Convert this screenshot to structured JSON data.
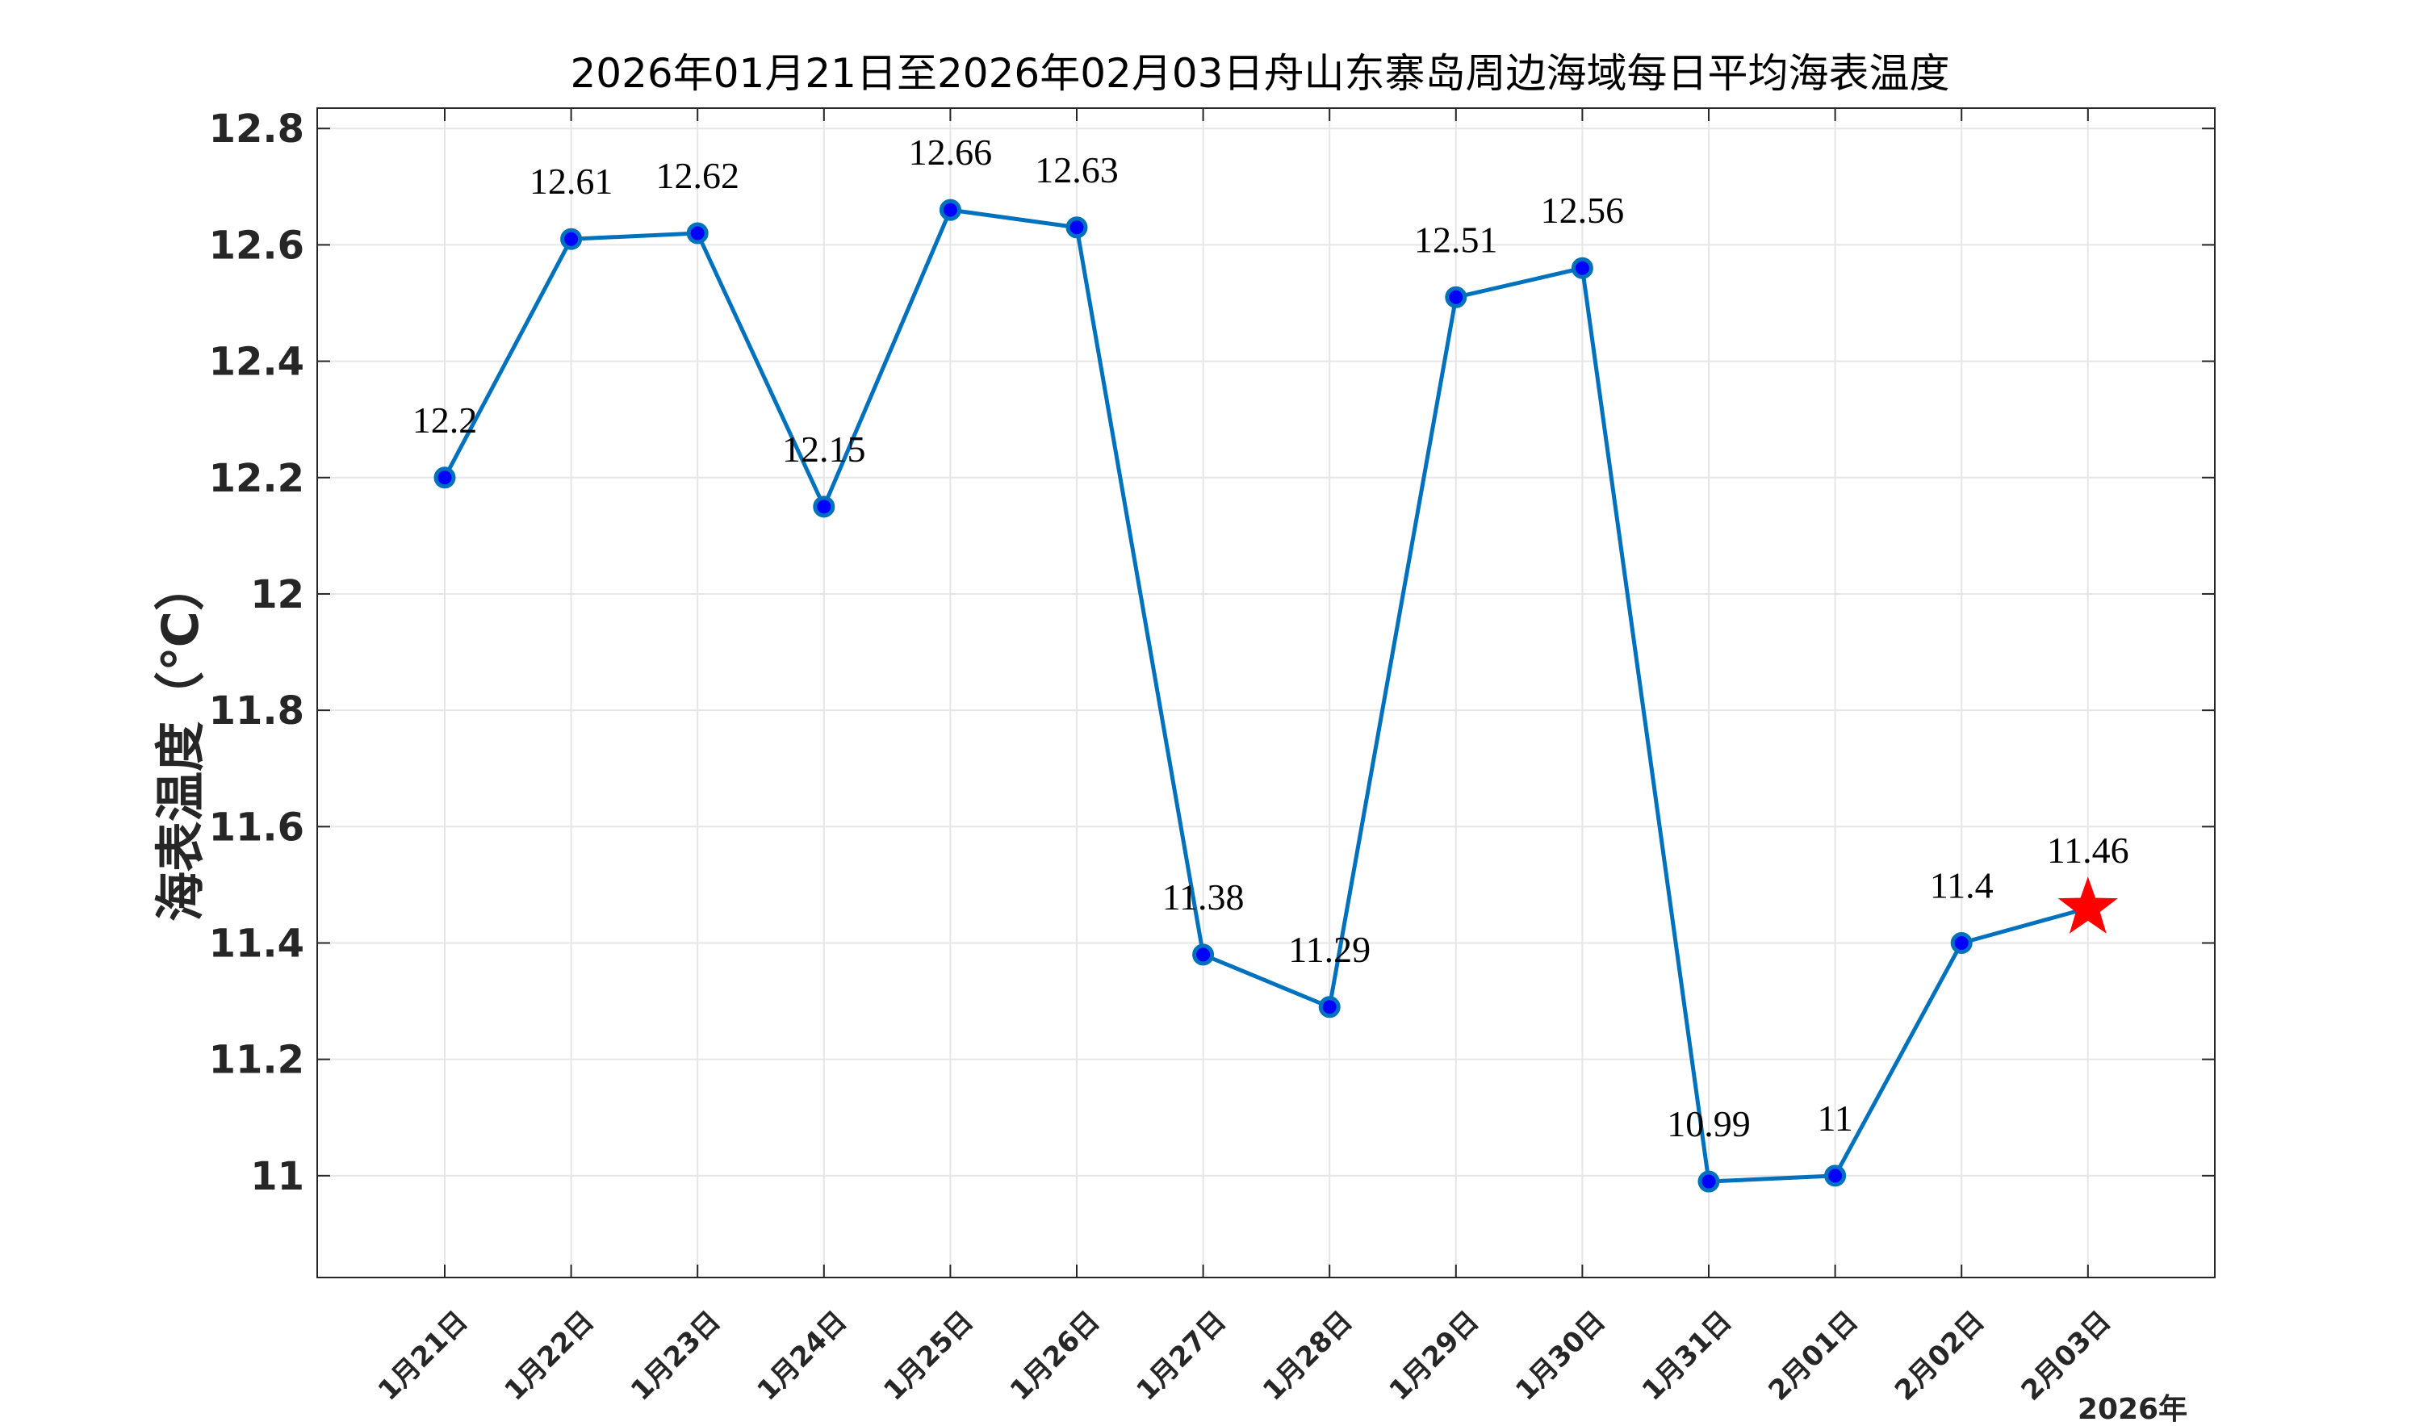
{
  "chart_data": {
    "type": "line",
    "title": "2026年01月21日至2026年02月03日舟山东寨岛周边海域每日平均海表温度",
    "ylabel": "海表温度（℃）",
    "xlabel": "",
    "x_group_label": "2026年",
    "categories": [
      "1月21日",
      "1月22日",
      "1月23日",
      "1月24日",
      "1月25日",
      "1月26日",
      "1月27日",
      "1月28日",
      "1月29日",
      "1月30日",
      "1月31日",
      "2月01日",
      "2月02日",
      "2月03日"
    ],
    "values": [
      12.2,
      12.61,
      12.62,
      12.15,
      12.66,
      12.63,
      11.38,
      11.29,
      12.51,
      12.56,
      10.99,
      11,
      11.4,
      11.46
    ],
    "data_labels": [
      "12.2",
      "12.61",
      "12.62",
      "12.15",
      "12.66",
      "12.63",
      "11.38",
      "11.29",
      "12.51",
      "12.56",
      "10.99",
      "11",
      "11.4",
      "11.46"
    ],
    "ylim": [
      10.825,
      12.835
    ],
    "yticks": [
      11,
      11.2,
      11.4,
      11.6,
      11.8,
      12,
      12.2,
      12.4,
      12.6,
      12.8
    ],
    "ytick_labels": [
      "11",
      "11.2",
      "11.4",
      "11.6",
      "11.8",
      "12",
      "12.2",
      "12.4",
      "12.6",
      "12.8"
    ],
    "grid": true,
    "last_point_marker": "star",
    "colors": {
      "line": "#0072BD",
      "marker_fill": "#0000FF",
      "marker_edge": "#0072BD",
      "star": "#FF0000",
      "grid": "#E6E6E6",
      "axis": "#262626"
    }
  }
}
